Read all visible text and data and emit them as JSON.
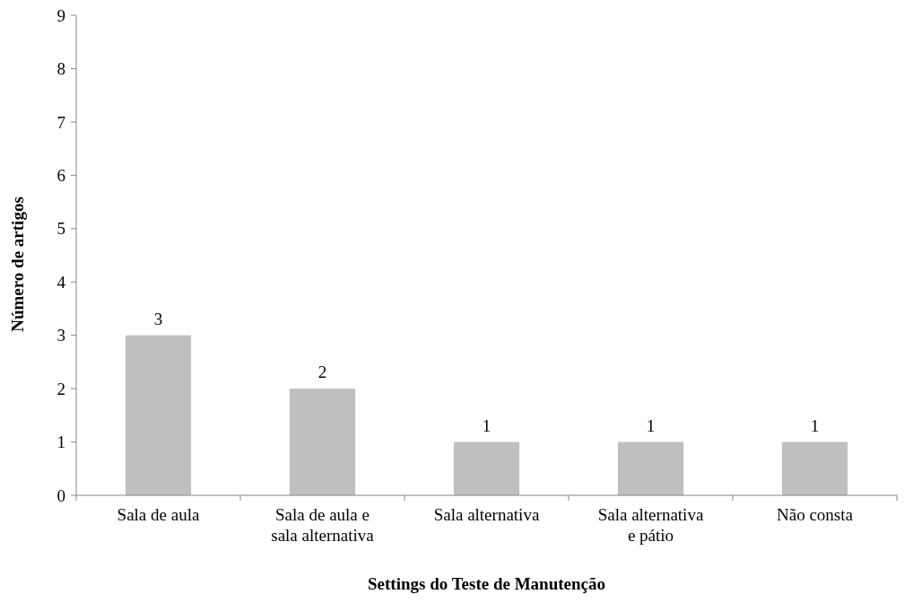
{
  "chart_data": {
    "type": "bar",
    "xlabel": "Settings do Teste de Manutenção",
    "ylabel": "Número de artigos",
    "categories": [
      "Sala de aula",
      "Sala de aula e sala alternativa",
      "Sala alternativa",
      "Sala alternativa e pátio",
      "Não consta"
    ],
    "values": [
      3,
      2,
      1,
      1,
      1
    ],
    "color": "#bfbfbf",
    "ylim": [
      0,
      9
    ],
    "yticks": [
      0,
      1,
      2,
      3,
      4,
      5,
      6,
      7,
      8,
      9
    ],
    "grid": false,
    "data_labels": true
  }
}
